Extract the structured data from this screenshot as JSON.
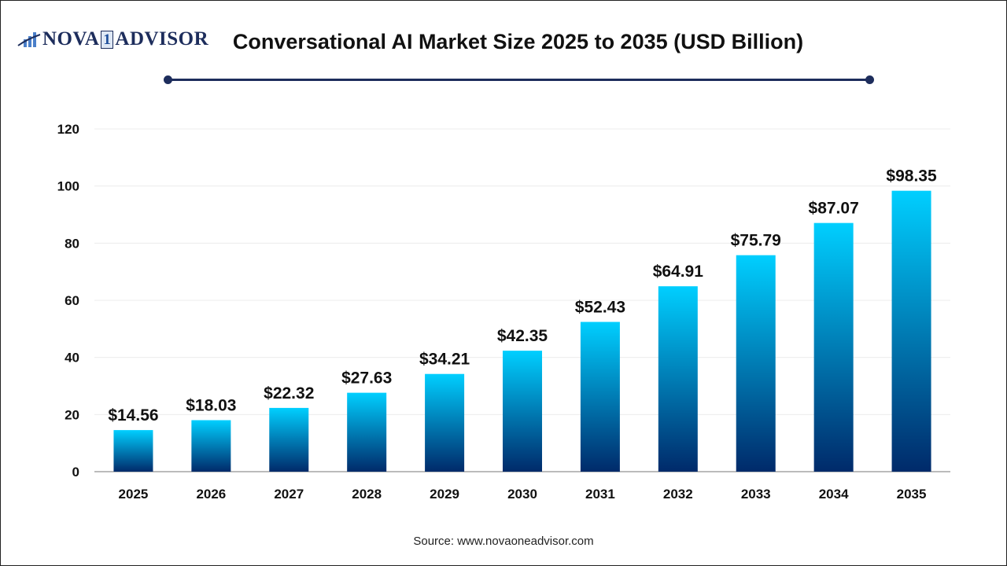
{
  "logo": {
    "left": "NOVA",
    "mid": "1",
    "right": "ADVISOR"
  },
  "source": "Source: www.novaoneadvisor.com",
  "colors": {
    "bar_top": "#00cfff",
    "bar_bottom": "#002a6a",
    "accent": "#1d2d5c"
  },
  "chart_data": {
    "type": "bar",
    "title": "Conversational AI Market Size 2025 to 2035 (USD Billion)",
    "categories": [
      "2025",
      "2026",
      "2027",
      "2028",
      "2029",
      "2030",
      "2031",
      "2032",
      "2033",
      "2034",
      "2035"
    ],
    "values": [
      14.56,
      18.03,
      22.32,
      27.63,
      34.21,
      42.35,
      52.43,
      64.91,
      75.79,
      87.07,
      98.35
    ],
    "data_labels": [
      "$14.56",
      "$18.03",
      "$22.32",
      "$27.63",
      "$34.21",
      "$42.35",
      "$52.43",
      "$64.91",
      "$75.79",
      "$87.07",
      "$98.35"
    ],
    "yticks": [
      0,
      20,
      40,
      60,
      80,
      100,
      120
    ],
    "ylim": [
      0,
      120
    ],
    "xlabel": "",
    "ylabel": "",
    "grid": true,
    "legend": "none"
  }
}
